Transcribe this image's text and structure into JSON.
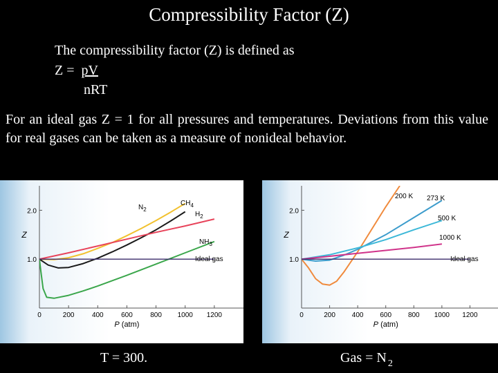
{
  "title": "Compressibility Factor (Z)",
  "definition": {
    "intro": "The compressibility factor (Z) is defined as",
    "eq_lhs": "Z =",
    "eq_numerator": "pV",
    "eq_denominator": "nRT"
  },
  "paragraph": "For an ideal gas Z = 1 for all pressures and temperatures.  Deviations from this value for real gases can be taken as a measure of nonideal behavior.",
  "captions": {
    "left": "T = 300.",
    "right_prefix": "Gas = N",
    "right_subscript": "2"
  },
  "colors": {
    "N2": "#f2c12e",
    "CH4": "#1a1a1a",
    "H2": "#e8435a",
    "NH3": "#3aa64b",
    "ideal": "#3a2a6a",
    "T200": "#f08a3c",
    "T273": "#3c9ccc",
    "T500": "#3cb8d8",
    "T1000": "#d0338a"
  },
  "chart_data": [
    {
      "type": "line",
      "title": "",
      "xlabel": "P (atm)",
      "ylabel": "Z",
      "xlim": [
        0,
        1400
      ],
      "ylim": [
        0,
        2.5
      ],
      "xticks": [
        "0",
        "200",
        "400",
        "600",
        "800",
        "1000",
        "1200"
      ],
      "yticks": [
        "1.0",
        "2.0"
      ],
      "series": [
        {
          "name": "N2",
          "label": "N",
          "sub": "2",
          "color": "#f2c12e",
          "x": [
            0,
            100,
            200,
            300,
            400,
            500,
            600,
            700,
            800,
            900,
            1000
          ],
          "y": [
            1.0,
            0.99,
            1.03,
            1.11,
            1.22,
            1.34,
            1.48,
            1.63,
            1.79,
            1.96,
            2.14
          ]
        },
        {
          "name": "CH4",
          "label": "CH",
          "sub": "4",
          "color": "#1a1a1a",
          "x": [
            0,
            60,
            130,
            200,
            300,
            400,
            500,
            600,
            700,
            800,
            900,
            1000
          ],
          "y": [
            1.0,
            0.88,
            0.82,
            0.83,
            0.91,
            1.02,
            1.15,
            1.29,
            1.44,
            1.6,
            1.78,
            1.97
          ]
        },
        {
          "name": "H2",
          "label": "H",
          "sub": "2",
          "color": "#e8435a",
          "x": [
            0,
            200,
            400,
            600,
            800,
            1000,
            1200
          ],
          "y": [
            1.0,
            1.13,
            1.27,
            1.41,
            1.55,
            1.68,
            1.82
          ]
        },
        {
          "name": "NH3",
          "label": "NH",
          "sub": "3",
          "color": "#3aa64b",
          "x": [
            0,
            10,
            25,
            50,
            100,
            200,
            300,
            400,
            600,
            800,
            1000,
            1200
          ],
          "y": [
            1.0,
            0.75,
            0.4,
            0.22,
            0.2,
            0.26,
            0.35,
            0.45,
            0.67,
            0.9,
            1.13,
            1.36
          ]
        },
        {
          "name": "Ideal gas",
          "label": "Ideal gas",
          "sub": "",
          "color": "#3a2a6a",
          "x": [
            0,
            1200
          ],
          "y": [
            1.0,
            1.0
          ]
        }
      ]
    },
    {
      "type": "line",
      "title": "",
      "xlabel": "P (atm)",
      "ylabel": "Z",
      "xlim": [
        0,
        1400
      ],
      "ylim": [
        0,
        2.5
      ],
      "xticks": [
        "0",
        "200",
        "400",
        "600",
        "800",
        "1000",
        "1200"
      ],
      "yticks": [
        "1.0",
        "2.0"
      ],
      "series": [
        {
          "name": "200 K",
          "label": "200 K",
          "color": "#f08a3c",
          "x": [
            0,
            50,
            100,
            150,
            200,
            250,
            300,
            400,
            500,
            600,
            700
          ],
          "y": [
            1.0,
            0.82,
            0.6,
            0.49,
            0.47,
            0.55,
            0.73,
            1.15,
            1.61,
            2.07,
            2.5
          ]
        },
        {
          "name": "273 K",
          "label": "273 K",
          "color": "#3c9ccc",
          "x": [
            0,
            100,
            200,
            300,
            400,
            600,
            800,
            1000
          ],
          "y": [
            1.0,
            0.96,
            0.98,
            1.08,
            1.2,
            1.5,
            1.85,
            2.2
          ]
        },
        {
          "name": "500 K",
          "label": "500 K",
          "color": "#3cb8d8",
          "x": [
            0,
            200,
            400,
            600,
            800,
            1000
          ],
          "y": [
            1.0,
            1.09,
            1.23,
            1.4,
            1.6,
            1.79
          ]
        },
        {
          "name": "1000 K",
          "label": "1000 K",
          "color": "#d0338a",
          "x": [
            0,
            200,
            400,
            600,
            800,
            1000
          ],
          "y": [
            1.0,
            1.06,
            1.12,
            1.18,
            1.24,
            1.31
          ]
        },
        {
          "name": "Ideal gas",
          "label": "Ideal gas",
          "color": "#3a2a6a",
          "x": [
            0,
            1200
          ],
          "y": [
            1.0,
            1.0
          ]
        }
      ]
    }
  ]
}
